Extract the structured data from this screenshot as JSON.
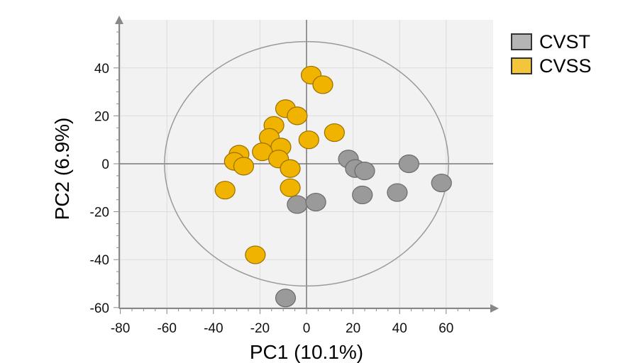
{
  "chart_data": {
    "type": "scatter",
    "xlabel": "PC1 (10.1%)",
    "ylabel": "PC2 (6.9%)",
    "xlim": [
      -80,
      80
    ],
    "ylim": [
      -60,
      60
    ],
    "x_ticks": [
      -80,
      -60,
      -40,
      -20,
      0,
      20,
      40,
      60
    ],
    "y_ticks": [
      -60,
      -40,
      -20,
      0,
      20,
      40
    ],
    "grid": true,
    "legend_placement": "top-right",
    "confidence_ellipse": {
      "center": [
        0,
        0
      ],
      "rx": 61,
      "ry": 51
    },
    "series": [
      {
        "name": "CVST",
        "color": "#9a9a9a",
        "points": [
          [
            18,
            2
          ],
          [
            21,
            -2
          ],
          [
            25,
            -3
          ],
          [
            24,
            -13
          ],
          [
            44,
            0
          ],
          [
            39,
            -12
          ],
          [
            58,
            -8
          ],
          [
            -4,
            -17
          ],
          [
            4,
            -16
          ],
          [
            -9,
            -56
          ]
        ]
      },
      {
        "name": "CVSS",
        "color": "#f0b400",
        "points": [
          [
            2,
            37
          ],
          [
            7,
            33
          ],
          [
            -9,
            23
          ],
          [
            -4,
            20
          ],
          [
            -14,
            16
          ],
          [
            12,
            13
          ],
          [
            -16,
            11
          ],
          [
            1,
            10
          ],
          [
            -11,
            7
          ],
          [
            -19,
            5
          ],
          [
            -29,
            4
          ],
          [
            -31,
            1
          ],
          [
            -12,
            2
          ],
          [
            -27,
            -1
          ],
          [
            -7,
            -2
          ],
          [
            -35,
            -11
          ],
          [
            -7,
            -10
          ],
          [
            -22,
            -38
          ]
        ]
      }
    ]
  }
}
